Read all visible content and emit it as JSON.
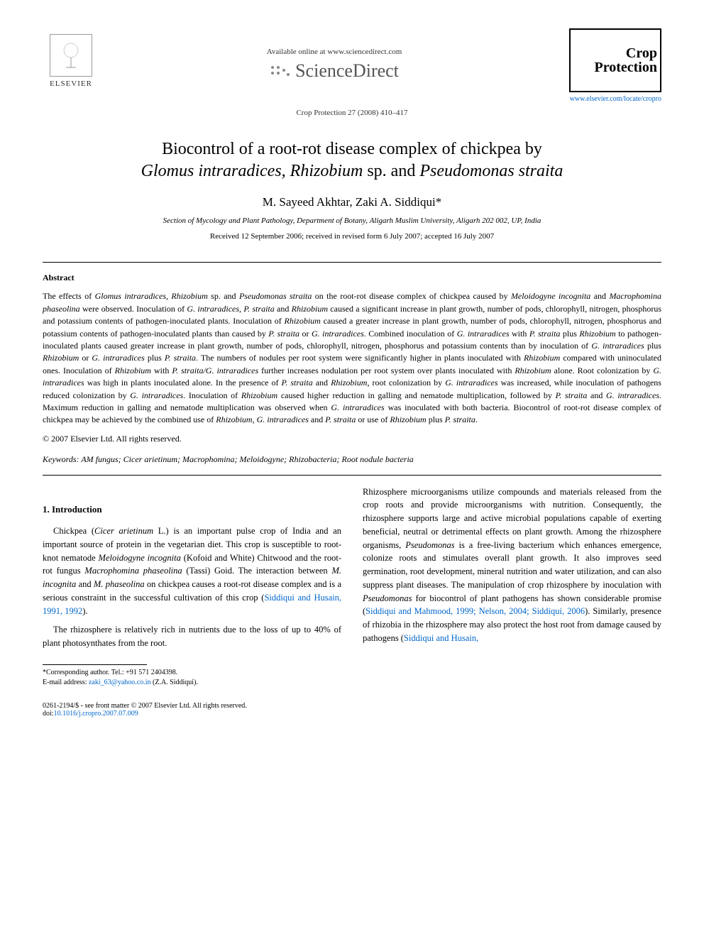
{
  "header": {
    "publisher": "ELSEVIER",
    "available_text": "Available online at www.sciencedirect.com",
    "sd_brand": "ScienceDirect",
    "journal_ref": "Crop Protection 27 (2008) 410–417",
    "journal_name_1": "Crop",
    "journal_name_2": "Protection",
    "journal_url": "www.elsevier.com/locate/cropro"
  },
  "title": {
    "line1_pre": "Biocontrol of a root-rot disease complex of chickpea by",
    "line2_italic": "Glomus intraradices, Rhizobium",
    "line2_mid": " sp. and ",
    "line2_italic2": "Pseudomonas straita"
  },
  "authors": "M. Sayeed Akhtar, Zaki A. Siddiqui*",
  "affiliation": "Section of Mycology and Plant Pathology, Department of Botany, Aligarh Muslim University, Aligarh 202 002, UP, India",
  "dates": "Received 12 September 2006; received in revised form 6 July 2007; accepted 16 July 2007",
  "abstract": {
    "heading": "Abstract",
    "body_parts": [
      {
        "t": "The effects of ",
        "i": false
      },
      {
        "t": "Glomus intraradices, Rhizobium",
        "i": true
      },
      {
        "t": " sp. and ",
        "i": false
      },
      {
        "t": "Pseudomonas straita",
        "i": true
      },
      {
        "t": " on the root-rot disease complex of chickpea caused by ",
        "i": false
      },
      {
        "t": "Meloidogyne incognita",
        "i": true
      },
      {
        "t": " and ",
        "i": false
      },
      {
        "t": "Macrophomina phaseolina",
        "i": true
      },
      {
        "t": " were observed. Inoculation of ",
        "i": false
      },
      {
        "t": "G. intraradices, P. straita",
        "i": true
      },
      {
        "t": " and ",
        "i": false
      },
      {
        "t": "Rhizobium",
        "i": true
      },
      {
        "t": " caused a significant increase in plant growth, number of pods, chlorophyll, nitrogen, phosphorus and potassium contents of pathogen-inoculated plants. Inoculation of ",
        "i": false
      },
      {
        "t": "Rhizobium",
        "i": true
      },
      {
        "t": " caused a greater increase in plant growth, number of pods, chlorophyll, nitrogen, phosphorus and potassium contents of pathogen-inoculated plants than caused by ",
        "i": false
      },
      {
        "t": "P. straita",
        "i": true
      },
      {
        "t": " or ",
        "i": false
      },
      {
        "t": "G. intraradices",
        "i": true
      },
      {
        "t": ". Combined inoculation of ",
        "i": false
      },
      {
        "t": "G. intraradices",
        "i": true
      },
      {
        "t": " with ",
        "i": false
      },
      {
        "t": "P. straita",
        "i": true
      },
      {
        "t": " plus ",
        "i": false
      },
      {
        "t": "Rhizobium",
        "i": true
      },
      {
        "t": " to pathogen-inoculated plants caused greater increase in plant growth, number of pods, chlorophyll, nitrogen, phosphorus and potassium contents than by inoculation of ",
        "i": false
      },
      {
        "t": "G. intraradices",
        "i": true
      },
      {
        "t": " plus ",
        "i": false
      },
      {
        "t": "Rhizobium",
        "i": true
      },
      {
        "t": " or ",
        "i": false
      },
      {
        "t": "G. intraradices",
        "i": true
      },
      {
        "t": " plus ",
        "i": false
      },
      {
        "t": "P. straita",
        "i": true
      },
      {
        "t": ". The numbers of nodules per root system were significantly higher in plants inoculated with ",
        "i": false
      },
      {
        "t": "Rhizobium",
        "i": true
      },
      {
        "t": " compared with uninoculated ones. Inoculation of ",
        "i": false
      },
      {
        "t": "Rhizobium",
        "i": true
      },
      {
        "t": " with ",
        "i": false
      },
      {
        "t": "P. straita/G. intraradices",
        "i": true
      },
      {
        "t": " further increases nodulation per root system over plants inoculated with ",
        "i": false
      },
      {
        "t": "Rhizobium",
        "i": true
      },
      {
        "t": " alone. Root colonization by ",
        "i": false
      },
      {
        "t": "G. intraradices",
        "i": true
      },
      {
        "t": " was high in plants inoculated alone. In the presence of ",
        "i": false
      },
      {
        "t": "P. straita",
        "i": true
      },
      {
        "t": " and ",
        "i": false
      },
      {
        "t": "Rhizobium",
        "i": true
      },
      {
        "t": ", root colonization by ",
        "i": false
      },
      {
        "t": "G. intraradices",
        "i": true
      },
      {
        "t": " was increased, while inoculation of pathogens reduced colonization by ",
        "i": false
      },
      {
        "t": "G. intraradices",
        "i": true
      },
      {
        "t": ". Inoculation of ",
        "i": false
      },
      {
        "t": "Rhizobium",
        "i": true
      },
      {
        "t": " caused higher reduction in galling and nematode multiplication, followed by ",
        "i": false
      },
      {
        "t": "P. straita",
        "i": true
      },
      {
        "t": " and ",
        "i": false
      },
      {
        "t": "G. intraradices",
        "i": true
      },
      {
        "t": ". Maximum reduction in galling and nematode multiplication was observed when ",
        "i": false
      },
      {
        "t": "G. intraradices",
        "i": true
      },
      {
        "t": " was inoculated with both bacteria. Biocontrol of root-rot disease complex of chickpea may be achieved by the combined use of ",
        "i": false
      },
      {
        "t": "Rhizobium, G. intraradices",
        "i": true
      },
      {
        "t": " and ",
        "i": false
      },
      {
        "t": "P. straita",
        "i": true
      },
      {
        "t": " or use of ",
        "i": false
      },
      {
        "t": "Rhizobium",
        "i": true
      },
      {
        "t": " plus ",
        "i": false
      },
      {
        "t": "P. straita",
        "i": true
      },
      {
        "t": ".",
        "i": false
      }
    ],
    "copyright": "© 2007 Elsevier Ltd. All rights reserved."
  },
  "keywords": {
    "label": "Keywords:",
    "text": " AM fungus; Cicer arietinum; Macrophomina; Meloidogyne; Rhizobacteria; Root nodule bacteria"
  },
  "intro": {
    "heading": "1. Introduction",
    "left_p1_parts": [
      {
        "t": "Chickpea (",
        "i": false
      },
      {
        "t": "Cicer arietinum",
        "i": true
      },
      {
        "t": " L.) is an important pulse crop of India and an important source of protein in the vegetarian diet. This crop is susceptible to root-knot nematode ",
        "i": false
      },
      {
        "t": "Meloidogyne incognita",
        "i": true
      },
      {
        "t": " (Kofoid and White) Chitwood and the root-rot fungus ",
        "i": false
      },
      {
        "t": "Macrophomina phaseolina",
        "i": true
      },
      {
        "t": " (Tassi) Goid. The interaction between ",
        "i": false
      },
      {
        "t": "M. incognita",
        "i": true
      },
      {
        "t": " and ",
        "i": false
      },
      {
        "t": "M. phaseolina",
        "i": true
      },
      {
        "t": " on chickpea causes a root-rot disease complex and is a serious constraint in the successful cultivation of this crop (",
        "i": false
      },
      {
        "t": "Siddiqui and Husain, 1991, 1992",
        "i": false,
        "link": true
      },
      {
        "t": ").",
        "i": false
      }
    ],
    "left_p2": "The rhizosphere is relatively rich in nutrients due to the loss of up to 40% of plant photosynthates from the root.",
    "right_p1_parts": [
      {
        "t": "Rhizosphere microorganisms utilize compounds and materials released from the crop roots and provide microorganisms with nutrition. Consequently, the rhizosphere supports large and active microbial populations capable of exerting beneficial, neutral or detrimental effects on plant growth. Among the rhizosphere organisms, ",
        "i": false
      },
      {
        "t": "Pseudomonas",
        "i": true
      },
      {
        "t": " is a free-living bacterium which enhances emergence, colonize roots and stimulates overall plant growth. It also improves seed germination, root development, mineral nutrition and water utilization, and can also suppress plant diseases. The manipulation of crop rhizosphere by inoculation with ",
        "i": false
      },
      {
        "t": "Pseudomonas",
        "i": true
      },
      {
        "t": " for biocontrol of plant pathogens has shown considerable promise (",
        "i": false
      },
      {
        "t": "Siddiqui and Mahmood, 1999; Nelson, 2004; Siddiqui, 2006",
        "i": false,
        "link": true
      },
      {
        "t": "). Similarly, presence of rhizobia in the rhizosphere may also protect the host root from damage caused by pathogens (",
        "i": false
      },
      {
        "t": "Siddiqui and Husain,",
        "i": false,
        "link": true
      }
    ]
  },
  "footnote": {
    "corresponding": "*Corresponding author. Tel.: +91 571 2404398.",
    "email_label": "E-mail address: ",
    "email": "zaki_63@yahoo.co.in",
    "email_suffix": " (Z.A. Siddiqui)."
  },
  "footer": {
    "front_matter": "0261-2194/$ - see front matter © 2007 Elsevier Ltd. All rights reserved.",
    "doi_label": "doi:",
    "doi": "10.1016/j.cropro.2007.07.009"
  },
  "colors": {
    "text": "#000000",
    "link": "#0066cc",
    "background": "#ffffff",
    "logo_gray": "#555555"
  },
  "typography": {
    "title_fontsize": 24,
    "author_fontsize": 17,
    "body_fontsize": 12.5,
    "abstract_fontsize": 12,
    "footnote_fontsize": 10,
    "font_family": "Georgia, Times New Roman, serif"
  }
}
